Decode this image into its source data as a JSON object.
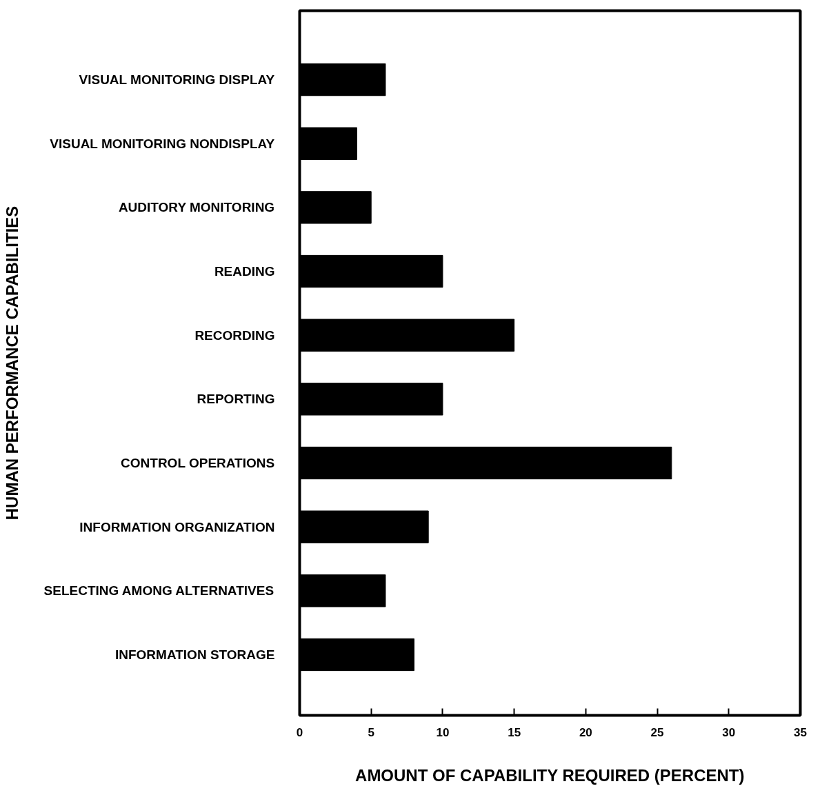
{
  "chart_data": {
    "type": "bar",
    "orientation": "horizontal",
    "categories": [
      "VISUAL MONITORING DISPLAY",
      "VISUAL MONITORING NONDISPLAY",
      "AUDITORY MONITORING",
      "READING",
      "RECORDING",
      "REPORTING",
      "CONTROL OPERATIONS",
      "INFORMATION ORGANIZATION",
      "SELECTING AMONG ALTERNATIVES",
      "INFORMATION STORAGE"
    ],
    "values": [
      6,
      4,
      5,
      10,
      15,
      10,
      26,
      9,
      6,
      8
    ],
    "color": "#000000",
    "xlim": [
      0,
      35
    ],
    "xticks": [
      0,
      5,
      10,
      15,
      20,
      25,
      30,
      35
    ],
    "xlabel": "AMOUNT OF CAPABILITY REQUIRED (PERCENT)",
    "ylabel": "HUMAN PERFORMANCE CAPABILITIES",
    "grid": false
  }
}
